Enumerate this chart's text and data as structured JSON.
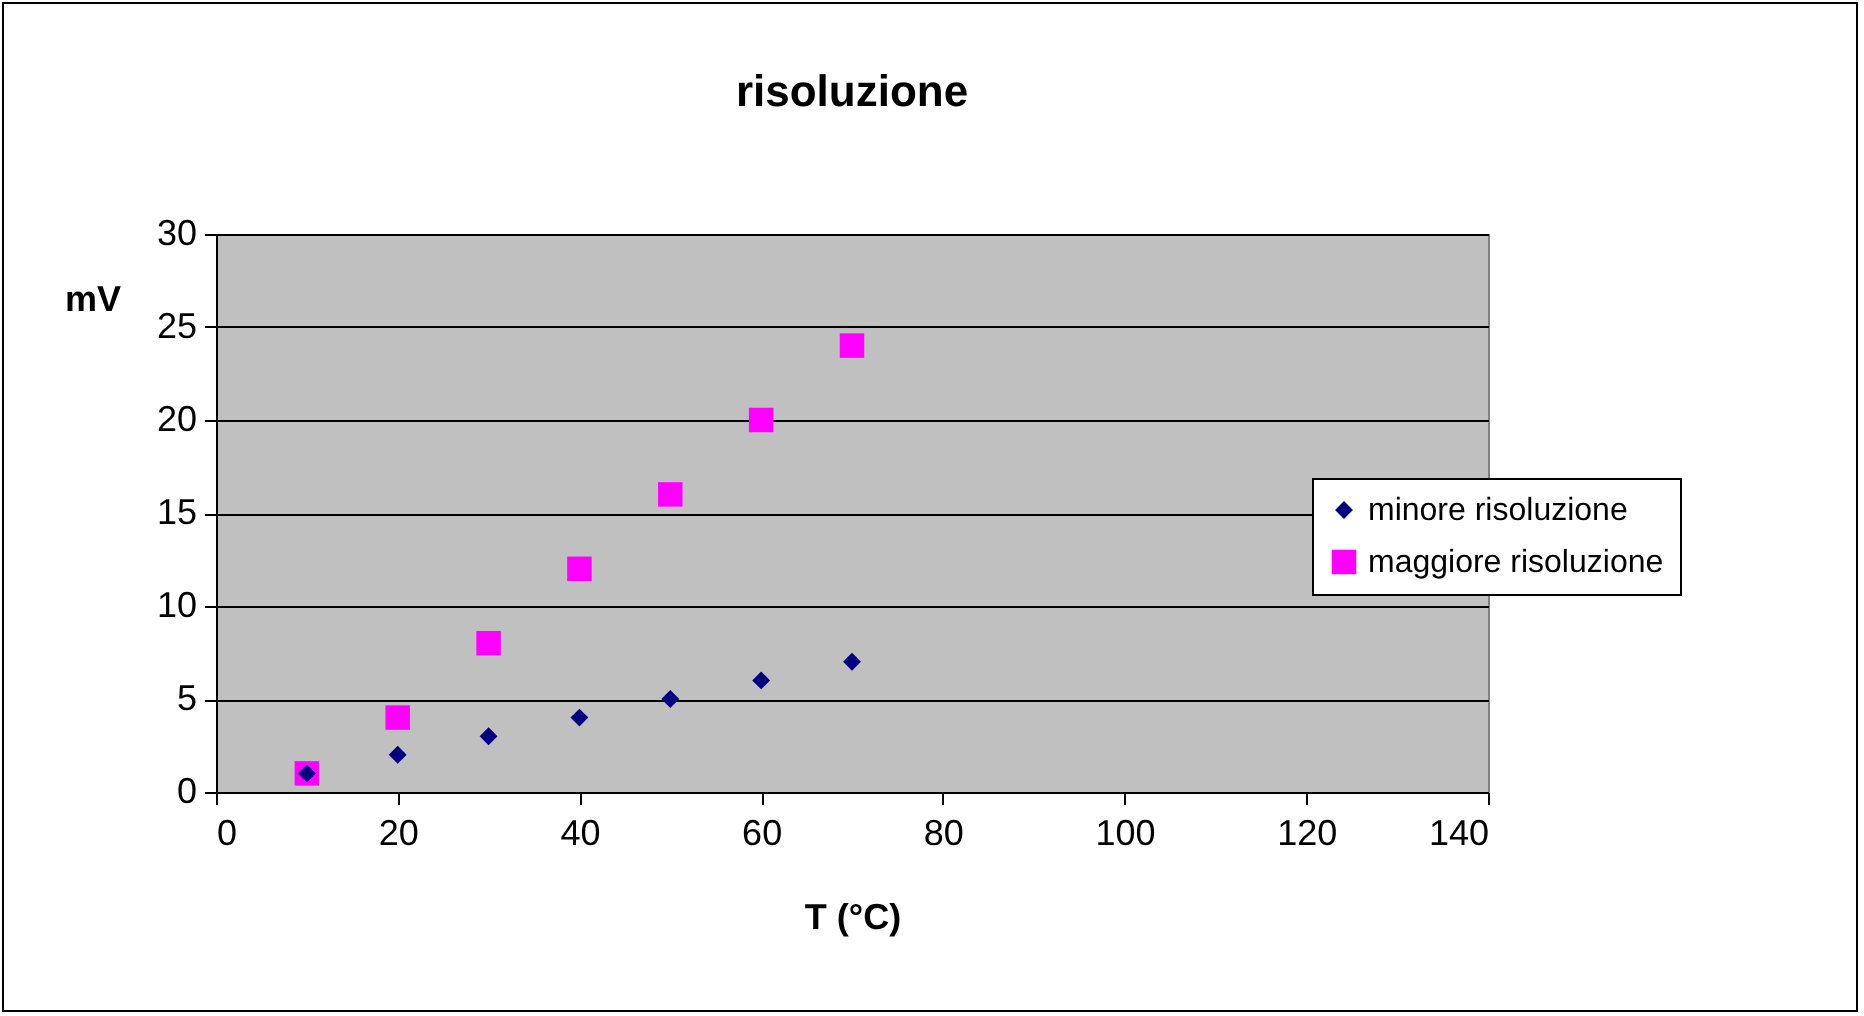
{
  "chart_data": {
    "type": "scatter",
    "title": "risoluzione",
    "xlabel": "T (°C)",
    "ylabel": "mV",
    "x": [
      10,
      20,
      30,
      40,
      50,
      60,
      70
    ],
    "series": [
      {
        "name": "minore risoluzione",
        "color": "#000080",
        "marker": "diamond",
        "values": [
          1,
          2,
          3,
          4,
          5,
          6,
          7
        ]
      },
      {
        "name": "maggiore risoluzione",
        "color": "#ff00ff",
        "marker": "square",
        "values": [
          1,
          4,
          8,
          12,
          16,
          20,
          24
        ]
      }
    ],
    "xlim": [
      0,
      140
    ],
    "xticks": [
      0,
      20,
      40,
      60,
      80,
      100,
      120,
      140
    ],
    "ylim": [
      0,
      30
    ],
    "yticks": [
      0,
      5,
      10,
      15,
      20,
      25,
      30
    ],
    "grid": "y",
    "legend": "right"
  }
}
